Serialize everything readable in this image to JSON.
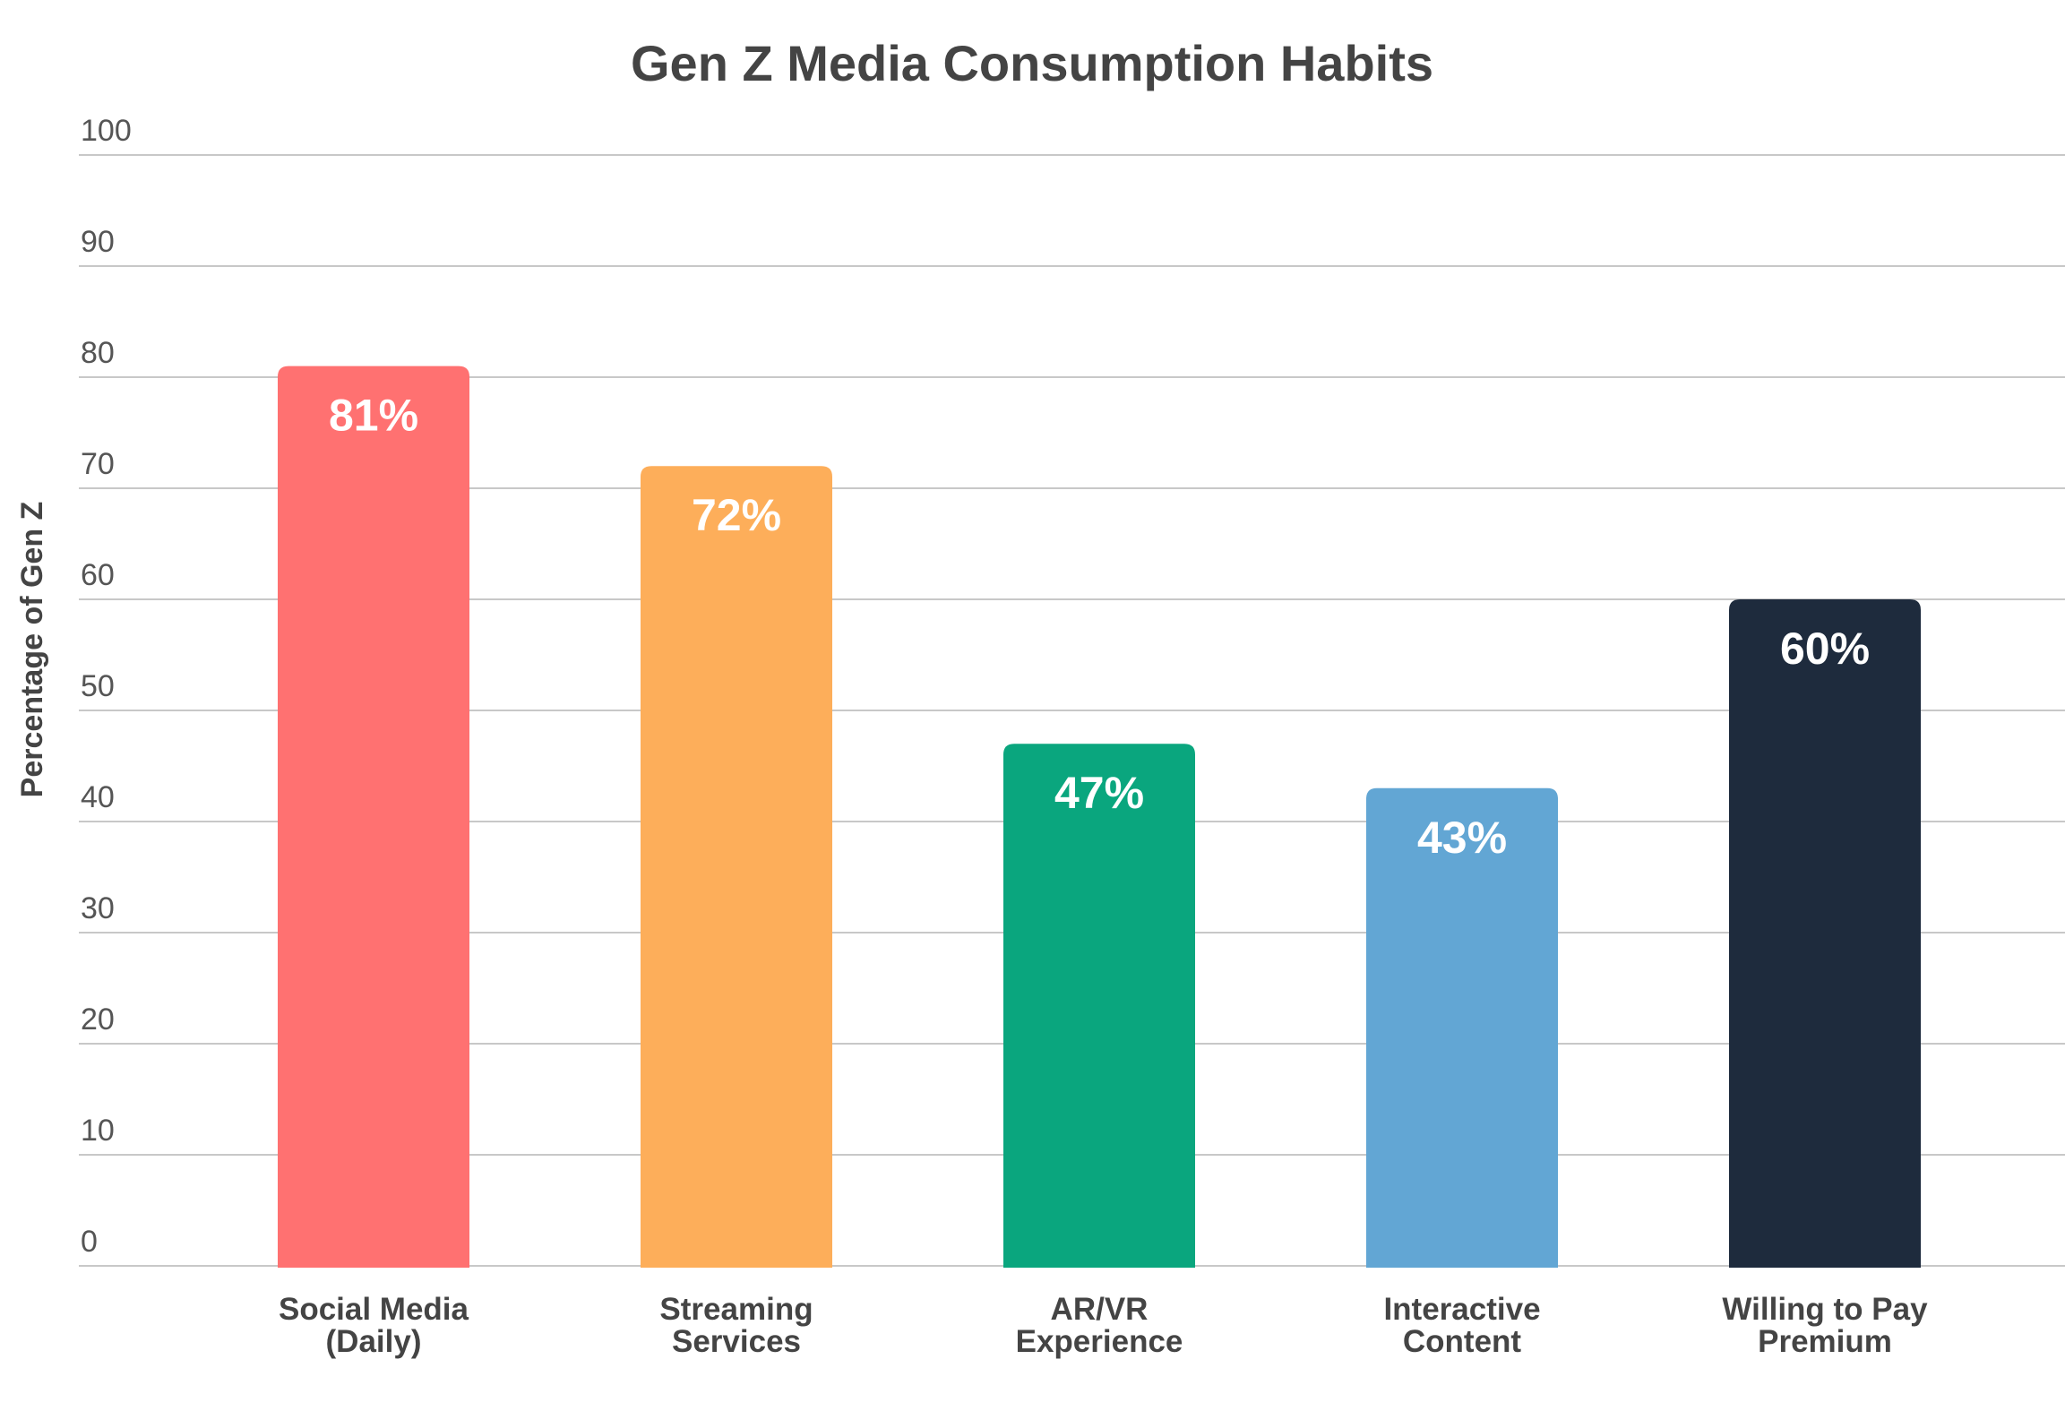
{
  "chart_data": {
    "type": "bar",
    "title": "Gen Z Media Consumption Habits",
    "xlabel": "",
    "ylabel": "Percentage of Gen Z",
    "ylim": [
      0,
      100
    ],
    "yticks": [
      0,
      10,
      20,
      30,
      40,
      50,
      60,
      70,
      80,
      90,
      100
    ],
    "grid": true,
    "categories": [
      [
        "Social Media",
        "(Daily)"
      ],
      [
        "Streaming",
        "Services"
      ],
      [
        "AR/VR",
        "Experience"
      ],
      [
        "Interactive",
        "Content"
      ],
      [
        "Willing to Pay",
        "Premium"
      ]
    ],
    "values": [
      81,
      72,
      47,
      43,
      60
    ],
    "data_labels": [
      "81%",
      "72%",
      "47%",
      "43%",
      "60%"
    ],
    "colors": [
      "#ff7171",
      "#fdae5a",
      "#0aa67e",
      "#62a6d4",
      "#1e2b3d"
    ]
  }
}
